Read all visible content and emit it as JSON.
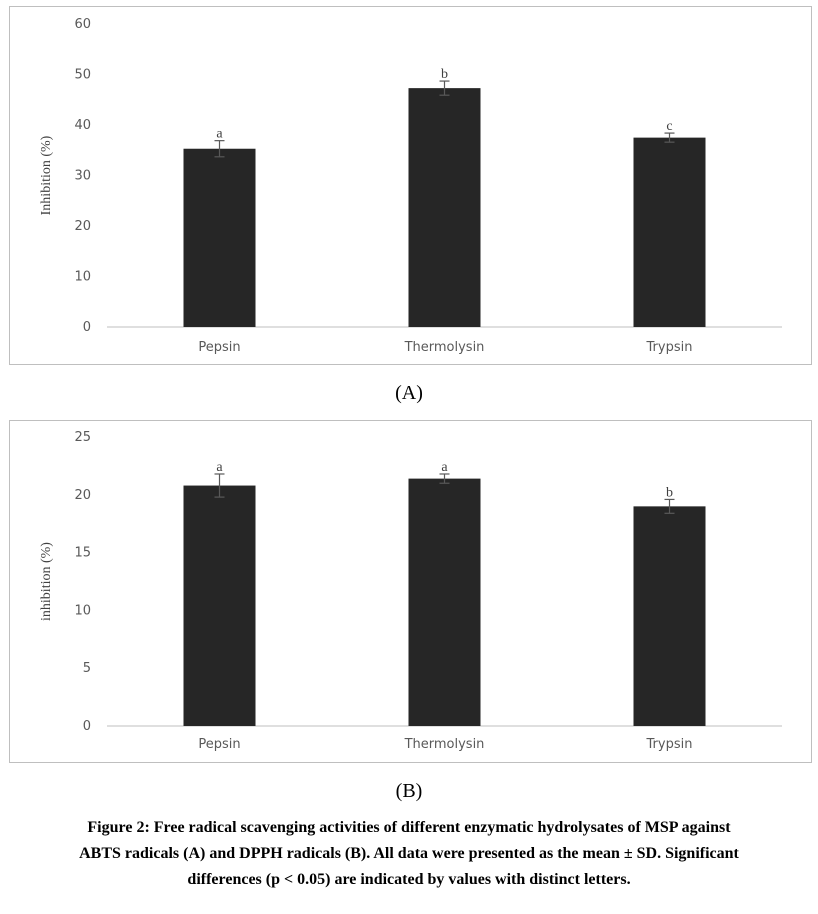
{
  "chart_data": [
    {
      "type": "bar",
      "panel_label": "(A)",
      "categories": [
        "Pepsin",
        "Thermolysin",
        "Trypsin"
      ],
      "values": [
        35.3,
        47.3,
        37.5
      ],
      "error": [
        1.6,
        1.4,
        0.9
      ],
      "significance_letters": [
        "a",
        "b",
        "c"
      ],
      "ylabel": "Inhibition (%)",
      "ylim": [
        0,
        60
      ],
      "yticks": [
        0,
        10,
        20,
        30,
        40,
        50,
        60
      ],
      "bar_color": "#262626",
      "grid": false
    },
    {
      "type": "bar",
      "panel_label": "(B)",
      "categories": [
        "Pepsin",
        "Thermolysin",
        "Trypsin"
      ],
      "values": [
        20.8,
        21.4,
        19.0
      ],
      "error": [
        1.0,
        0.4,
        0.6
      ],
      "significance_letters": [
        "a",
        "a",
        "b"
      ],
      "ylabel": "inhibition (%)",
      "ylim": [
        0,
        25
      ],
      "yticks": [
        0,
        5,
        10,
        15,
        20,
        25
      ],
      "bar_color": "#262626",
      "grid": false
    }
  ],
  "caption": {
    "lines": [
      "Figure 2: Free radical scavenging activities of different enzymatic hydrolysates of MSP against",
      "ABTS radicals (A) and DPPH radicals (B). All data were presented as the mean ± SD. Significant",
      "differences (p < 0.05) are indicated by values with distinct letters."
    ]
  }
}
